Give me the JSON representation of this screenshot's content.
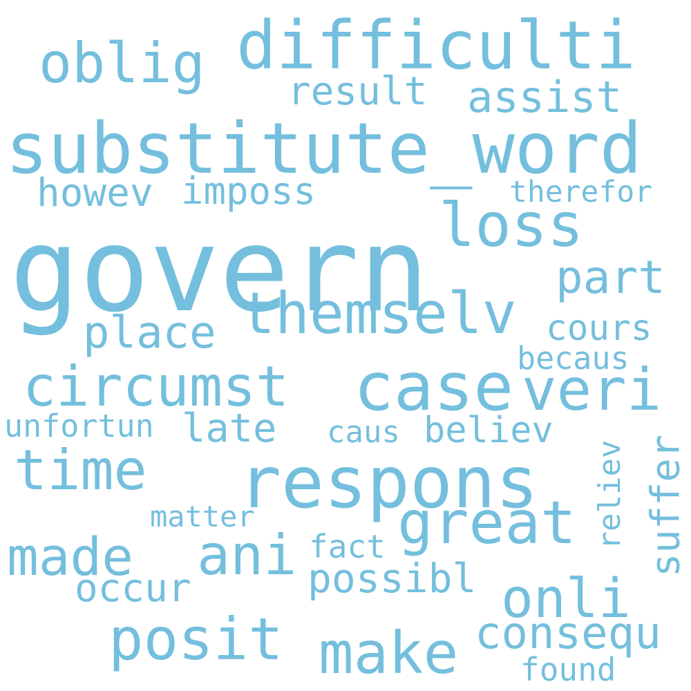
{
  "color": "#74bfdd",
  "background": "#ffffff",
  "words": [
    "govern",
    "substitute_word",
    "difficulti",
    "respons",
    "case",
    "circumst",
    "themselv",
    "oblig",
    "loss",
    "veri",
    "time",
    "made",
    "ani",
    "great",
    "posit",
    "make",
    "onli",
    "place",
    "part",
    "assist",
    "result",
    "howev",
    "imposs",
    "therefor",
    "cours",
    "becaus",
    "unfortun",
    "late",
    "caus",
    "believ",
    "suffer",
    "reliev",
    "matter",
    "fact",
    "possibl",
    "occur",
    "consequ",
    "found"
  ]
}
